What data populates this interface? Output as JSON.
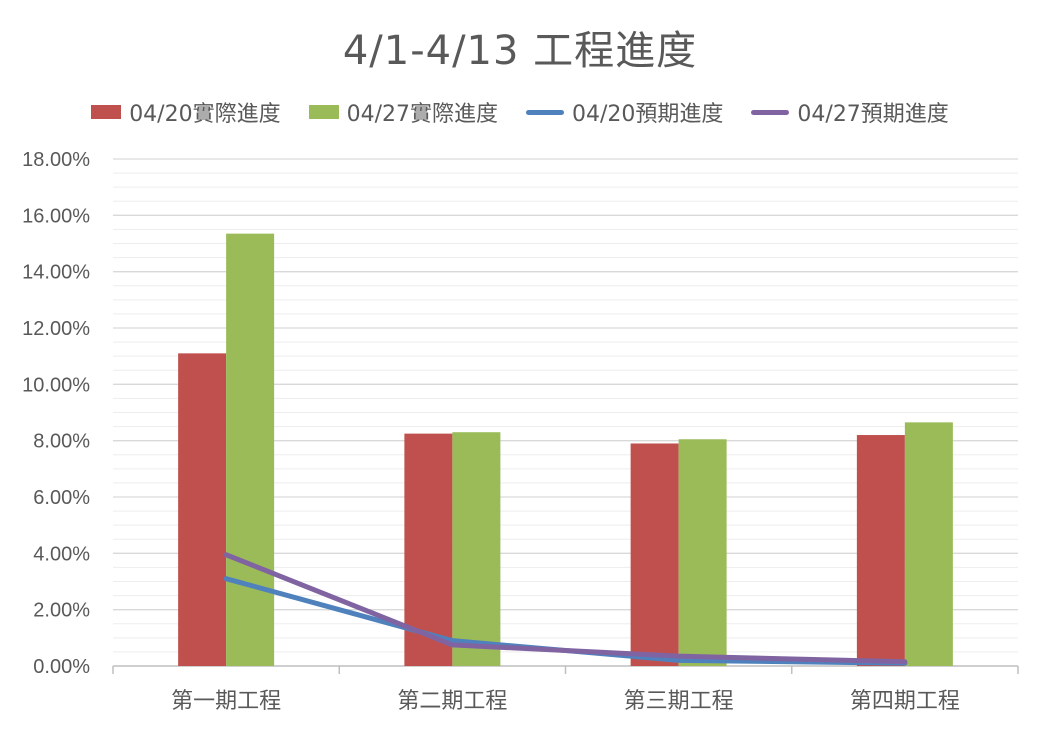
{
  "chart_data": {
    "type": "bar",
    "title": "4/1-4/13 工程進度",
    "categories": [
      "第一期工程",
      "第二期工程",
      "第三期工程",
      "第四期工程"
    ],
    "ylim": [
      0,
      0.18
    ],
    "yticks": [
      0,
      0.02,
      0.04,
      0.06,
      0.08,
      0.1,
      0.12,
      0.14,
      0.16,
      0.18
    ],
    "ytick_labels": [
      "0.00%",
      "2.00%",
      "4.00%",
      "6.00%",
      "8.00%",
      "10.00%",
      "12.00%",
      "14.00%",
      "16.00%",
      "18.00%"
    ],
    "grid": true,
    "legend_position": "top",
    "series": [
      {
        "name": "04/20實際進度",
        "kind": "bar",
        "color": "#C0504D",
        "values": [
          0.111,
          0.0825,
          0.079,
          0.082
        ]
      },
      {
        "name": "04/27實際進度",
        "kind": "bar",
        "color": "#9BBB59",
        "values": [
          0.1535,
          0.083,
          0.0805,
          0.0865
        ]
      },
      {
        "name": "04/20預期進度",
        "kind": "line",
        "color": "#4F81BD",
        "values": [
          0.031,
          0.009,
          0.002,
          0.001
        ]
      },
      {
        "name": "04/27預期進度",
        "kind": "line",
        "color": "#8064A2",
        "values": [
          0.0395,
          0.0075,
          0.0035,
          0.0015
        ]
      }
    ]
  }
}
